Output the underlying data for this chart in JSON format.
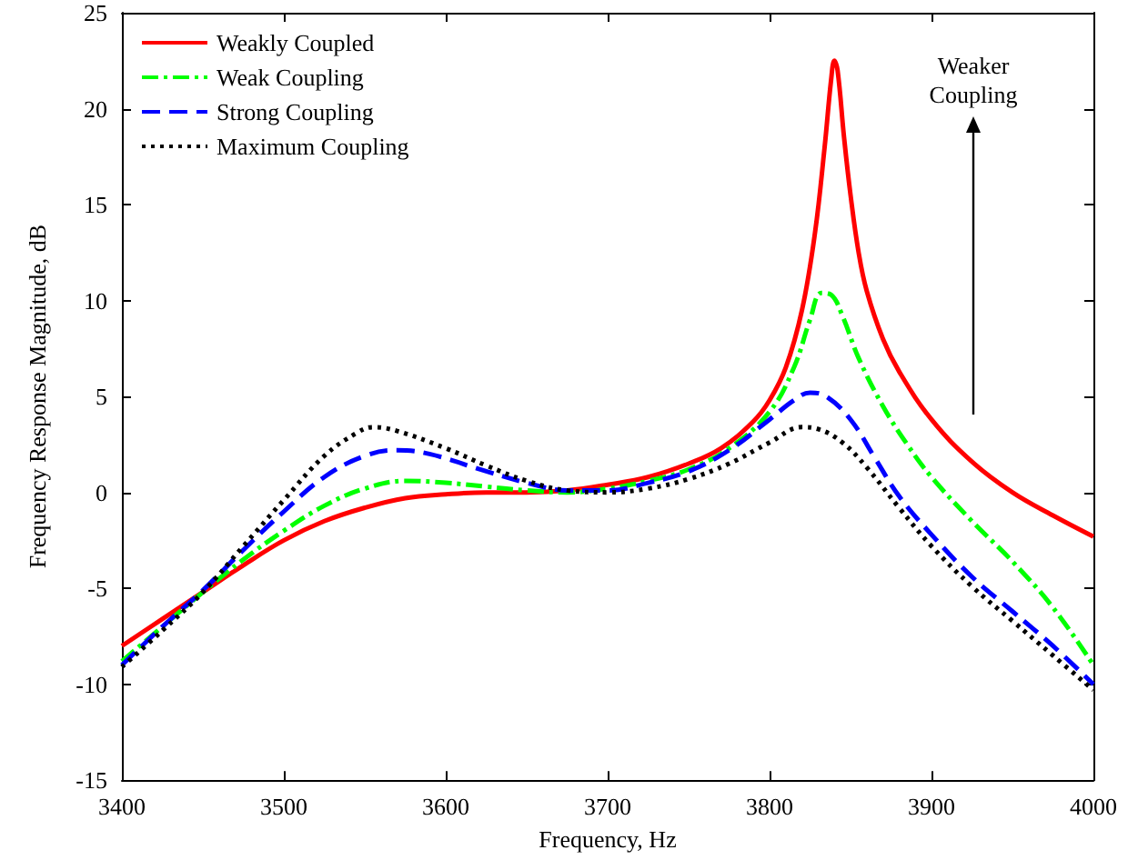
{
  "chart_data": {
    "type": "line",
    "xlabel": "Frequency, Hz",
    "ylabel": "Frequency Response Magnitude, dB",
    "xlim": [
      3400,
      4000
    ],
    "xticks": [
      3400,
      3500,
      3600,
      3700,
      3800,
      3900,
      4000
    ],
    "ylim": [
      -15,
      25
    ],
    "yticks": [
      -15,
      -10,
      -5,
      0,
      5,
      10,
      15,
      20,
      25
    ],
    "legend": "top left",
    "marker": "none",
    "annotations": [
      "Weaker Coupling"
    ],
    "series": [
      {
        "name": "Weakly Coupled",
        "color": "#ff0000",
        "line_style": "solid",
        "x": [
          3400,
          3425,
          3450,
          3475,
          3500,
          3525,
          3550,
          3575,
          3600,
          3625,
          3650,
          3675,
          3700,
          3725,
          3750,
          3770,
          3790,
          3800,
          3810,
          3820,
          3828,
          3834,
          3838,
          3840,
          3842,
          3846,
          3850,
          3855,
          3860,
          3870,
          3880,
          3900,
          3925,
          3950,
          3975,
          4000
        ],
        "values": [
          -8,
          -6.6,
          -5.2,
          -3.8,
          -2.5,
          -1.5,
          -0.8,
          -0.3,
          -0.1,
          0,
          0,
          0.1,
          0.4,
          0.8,
          1.5,
          2.3,
          3.7,
          4.8,
          6.5,
          9.5,
          13.5,
          18,
          21.5,
          22.5,
          22,
          18.5,
          15.5,
          12.5,
          10.5,
          8,
          6.3,
          3.8,
          1.6,
          0,
          -1.2,
          -2.3
        ]
      },
      {
        "name": "Weak Coupling",
        "color": "#00ff00",
        "line_style": "dashdot",
        "x": [
          3400,
          3425,
          3450,
          3475,
          3500,
          3525,
          3550,
          3575,
          3600,
          3625,
          3650,
          3675,
          3700,
          3725,
          3750,
          3775,
          3800,
          3815,
          3825,
          3832,
          3838,
          3845,
          3855,
          3870,
          3885,
          3900,
          3925,
          3950,
          3975,
          4000
        ],
        "values": [
          -8.8,
          -7,
          -5.2,
          -3.5,
          -2,
          -0.7,
          0.2,
          0.6,
          0.5,
          0.3,
          0.1,
          0,
          0.2,
          0.6,
          1.2,
          2.3,
          4.2,
          6.5,
          9,
          10.4,
          10.3,
          9.2,
          7,
          4.5,
          2.5,
          0.8,
          -1.5,
          -3.6,
          -6,
          -9
        ]
      },
      {
        "name": "Strong Coupling",
        "color": "#0000ff",
        "line_style": "dashed",
        "x": [
          3400,
          3425,
          3450,
          3475,
          3500,
          3525,
          3550,
          3570,
          3590,
          3625,
          3650,
          3675,
          3700,
          3725,
          3750,
          3775,
          3800,
          3815,
          3825,
          3835,
          3850,
          3865,
          3880,
          3900,
          3925,
          3950,
          3975,
          4000
        ],
        "values": [
          -9,
          -7,
          -5.1,
          -3,
          -1,
          0.8,
          1.9,
          2.2,
          2,
          1.1,
          0.5,
          0.1,
          0.1,
          0.5,
          1.1,
          2.2,
          3.8,
          4.8,
          5.2,
          5,
          3.8,
          1.8,
          -0.2,
          -2.2,
          -4.4,
          -6.2,
          -8,
          -10
        ]
      },
      {
        "name": "Maximum Coupling",
        "color": "#000000",
        "line_style": "dotted",
        "x": [
          3400,
          3425,
          3450,
          3475,
          3500,
          3525,
          3545,
          3555,
          3570,
          3600,
          3625,
          3650,
          3675,
          3700,
          3725,
          3750,
          3775,
          3800,
          3820,
          3830,
          3845,
          3860,
          3880,
          3900,
          3925,
          3950,
          3975,
          4000
        ],
        "values": [
          -9.1,
          -7.2,
          -5.2,
          -2.8,
          -0.4,
          1.9,
          3.1,
          3.4,
          3.2,
          2.3,
          1.4,
          0.6,
          0.1,
          0,
          0.2,
          0.7,
          1.5,
          2.6,
          3.4,
          3.3,
          2.6,
          1.3,
          -0.8,
          -2.8,
          -4.9,
          -6.7,
          -8.5,
          -10.3
        ]
      }
    ]
  }
}
